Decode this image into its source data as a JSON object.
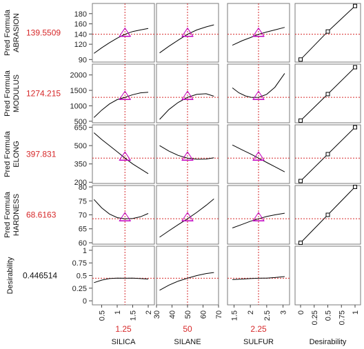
{
  "chart_data": {
    "type": "line",
    "title": "",
    "colors": {
      "curve": "#000000",
      "crosshair": "#d62728",
      "value_text": "#d62728",
      "marker": "#c000c0",
      "frame": "#7a7a7a"
    },
    "columns": [
      {
        "key": "silica",
        "label": "SILICA",
        "value_text": "1.25",
        "current": 1.25,
        "range": [
          0.2,
          2.2
        ],
        "ticks": [
          {
            "v": 0.5,
            "t": "0.5"
          },
          {
            "v": 1,
            "t": "1"
          },
          {
            "v": 1.5,
            "t": "1.5"
          },
          {
            "v": 2,
            "t": "2"
          }
        ]
      },
      {
        "key": "silane",
        "label": "SILANE",
        "value_text": "50",
        "current": 50,
        "range": [
          30,
          70
        ],
        "ticks": [
          {
            "v": 30,
            "t": "30"
          },
          {
            "v": 40,
            "t": "40"
          },
          {
            "v": 50,
            "t": "50"
          },
          {
            "v": 60,
            "t": "60"
          },
          {
            "v": 70,
            "t": "70"
          }
        ]
      },
      {
        "key": "sulfur",
        "label": "SULFUR",
        "value_text": "2.25",
        "current": 2.25,
        "range": [
          1.3,
          3.2
        ],
        "ticks": [
          {
            "v": 1.5,
            "t": "1.5"
          },
          {
            "v": 2,
            "t": "2"
          },
          {
            "v": 2.5,
            "t": "2.5"
          },
          {
            "v": 3,
            "t": "3"
          }
        ]
      },
      {
        "key": "desirability",
        "label": "Desirability",
        "value_text": "",
        "current": null,
        "range": [
          -0.05,
          1.05
        ],
        "ticks": [
          {
            "v": 0,
            "t": "0"
          },
          {
            "v": 0.25,
            "t": "0.25"
          },
          {
            "v": 0.5,
            "t": "0.5"
          },
          {
            "v": 0.75,
            "t": "0.75"
          },
          {
            "v": 1,
            "t": "1"
          }
        ]
      }
    ],
    "rows": [
      {
        "key": "abrasion",
        "label_line1": "Pred Formula",
        "label_line2": "ABRASION",
        "value_text": "139.5509",
        "current": 139.5509,
        "ylim": [
          85,
          200
        ],
        "ticks": [
          {
            "v": 90,
            "t": "90"
          },
          {
            "v": 120,
            "t": "120"
          },
          {
            "v": 140,
            "t": "140"
          },
          {
            "v": 160,
            "t": "160"
          },
          {
            "v": 180,
            "t": "180"
          }
        ],
        "curves": [
          {
            "x": [
              0.25,
              0.5,
              0.75,
              1.0,
              1.25,
              1.5,
              1.75,
              2.0
            ],
            "y": [
              102,
              113,
              123,
              132,
              139.55,
              145,
              148,
              151
            ]
          },
          {
            "x": [
              32,
              38,
              44,
              50,
              56,
              62,
              67
            ],
            "y": [
              103,
              116,
              128,
              139.55,
              148,
              154,
              158
            ]
          },
          {
            "x": [
              1.45,
              1.75,
              2.0,
              2.25,
              2.5,
              2.75,
              3.05
            ],
            "y": [
              118,
              127,
              133,
              139.55,
              144,
              148,
              153
            ]
          }
        ],
        "desirability_points": [
          {
            "d": 0.0,
            "y": 90
          },
          {
            "d": 0.5,
            "y": 145
          },
          {
            "d": 1.0,
            "y": 195
          }
        ]
      },
      {
        "key": "modulus",
        "label_line1": "Pred Formula",
        "label_line2": "MODULUS",
        "value_text": "1274.215",
        "current": 1274.215,
        "ylim": [
          450,
          2350
        ],
        "ticks": [
          {
            "v": 500,
            "t": "500"
          },
          {
            "v": 1000,
            "t": "1000"
          },
          {
            "v": 1500,
            "t": "1500"
          },
          {
            "v": 2000,
            "t": "2000"
          }
        ],
        "curves": [
          {
            "x": [
              0.25,
              0.5,
              0.75,
              1.0,
              1.25,
              1.5,
              1.75,
              2.0
            ],
            "y": [
              620,
              860,
              1060,
              1200,
              1274,
              1360,
              1420,
              1440
            ]
          },
          {
            "x": [
              32,
              38,
              44,
              50,
              56,
              62,
              67
            ],
            "y": [
              560,
              880,
              1110,
              1274,
              1370,
              1390,
              1310
            ]
          },
          {
            "x": [
              1.45,
              1.65,
              1.85,
              2.05,
              2.25,
              2.5,
              2.75,
              3.05
            ],
            "y": [
              1580,
              1420,
              1320,
              1270,
              1274,
              1370,
              1600,
              2050
            ]
          }
        ],
        "desirability_points": [
          {
            "d": 0.0,
            "y": 520
          },
          {
            "d": 0.5,
            "y": 1380
          },
          {
            "d": 1.0,
            "y": 2250
          }
        ]
      },
      {
        "key": "elong",
        "label_line1": "Pred Formula",
        "label_line2": "ELONG",
        "value_text": "397.831",
        "current": 397.831,
        "ylim": [
          190,
          670
        ],
        "ticks": [
          {
            "v": 200,
            "t": "200"
          },
          {
            "v": 350,
            "t": "350"
          },
          {
            "v": 500,
            "t": "500"
          },
          {
            "v": 650,
            "t": "650"
          }
        ],
        "curves": [
          {
            "x": [
              0.25,
              0.5,
              0.75,
              1.0,
              1.25,
              1.5,
              1.75,
              2.0
            ],
            "y": [
              605,
              550,
              500,
              450,
              397.8,
              350,
              310,
              270
            ]
          },
          {
            "x": [
              32,
              38,
              44,
              50,
              56,
              62,
              67
            ],
            "y": [
              500,
              455,
              420,
              397.8,
              388,
              390,
              400
            ]
          },
          {
            "x": [
              1.45,
              1.75,
              2.0,
              2.25,
              2.5,
              2.75,
              3.05
            ],
            "y": [
              505,
              465,
              432,
              397.8,
              362,
              327,
              285
            ]
          }
        ],
        "desirability_points": [
          {
            "d": 0.0,
            "y": 210
          },
          {
            "d": 0.5,
            "y": 430
          },
          {
            "d": 1.0,
            "y": 650
          }
        ]
      },
      {
        "key": "hardness",
        "label_line1": "Pred Formula",
        "label_line2": "HARDNESS",
        "value_text": "68.6163",
        "current": 68.6163,
        "ylim": [
          59.5,
          80.5
        ],
        "ticks": [
          {
            "v": 60,
            "t": "60"
          },
          {
            "v": 65,
            "t": "65"
          },
          {
            "v": 70,
            "t": "70"
          },
          {
            "v": 75,
            "t": "75"
          },
          {
            "v": 80,
            "t": "80"
          }
        ],
        "curves": [
          {
            "x": [
              0.25,
              0.5,
              0.75,
              1.0,
              1.25,
              1.5,
              1.75,
              2.0
            ],
            "y": [
              75.5,
              72.5,
              70.3,
              69.0,
              68.6,
              68.7,
              69.3,
              70.5
            ]
          },
          {
            "x": [
              32,
              38,
              44,
              50,
              56,
              62,
              67
            ],
            "y": [
              62.0,
              64.3,
              66.5,
              68.6,
              70.9,
              73.4,
              75.7
            ]
          },
          {
            "x": [
              1.45,
              1.75,
              2.0,
              2.25,
              2.5,
              2.75,
              3.05
            ],
            "y": [
              65.3,
              66.6,
              67.7,
              68.6,
              69.4,
              70.0,
              70.6
            ]
          }
        ],
        "desirability_points": [
          {
            "d": 0.0,
            "y": 60
          },
          {
            "d": 0.5,
            "y": 70
          },
          {
            "d": 1.0,
            "y": 80
          }
        ]
      },
      {
        "key": "desirability",
        "label_line1": "Desirability",
        "label_line2": "",
        "value_text": "0.446514",
        "current": 0.446514,
        "ylim": [
          -0.08,
          1.08
        ],
        "ticks": [
          {
            "v": 0,
            "t": "0"
          },
          {
            "v": 0.25,
            "t": "0.25"
          },
          {
            "v": 0.5,
            "t": "0.5"
          },
          {
            "v": 0.75,
            "t": "0.75"
          },
          {
            "v": 1,
            "t": "1"
          }
        ],
        "curves": [
          {
            "x": [
              0.25,
              0.5,
              0.75,
              1.0,
              1.25,
              1.5,
              1.75,
              2.0
            ],
            "y": [
              0.36,
              0.41,
              0.44,
              0.45,
              0.4465,
              0.45,
              0.44,
              0.43
            ]
          },
          {
            "x": [
              32,
              38,
              44,
              50,
              56,
              62,
              67
            ],
            "y": [
              0.21,
              0.31,
              0.39,
              0.4465,
              0.5,
              0.54,
              0.56
            ]
          },
          {
            "x": [
              1.45,
              1.75,
              2.0,
              2.25,
              2.5,
              2.75,
              3.05
            ],
            "y": [
              0.42,
              0.43,
              0.44,
              0.4465,
              0.45,
              0.46,
              0.48
            ]
          }
        ],
        "desirability_points": []
      }
    ]
  }
}
